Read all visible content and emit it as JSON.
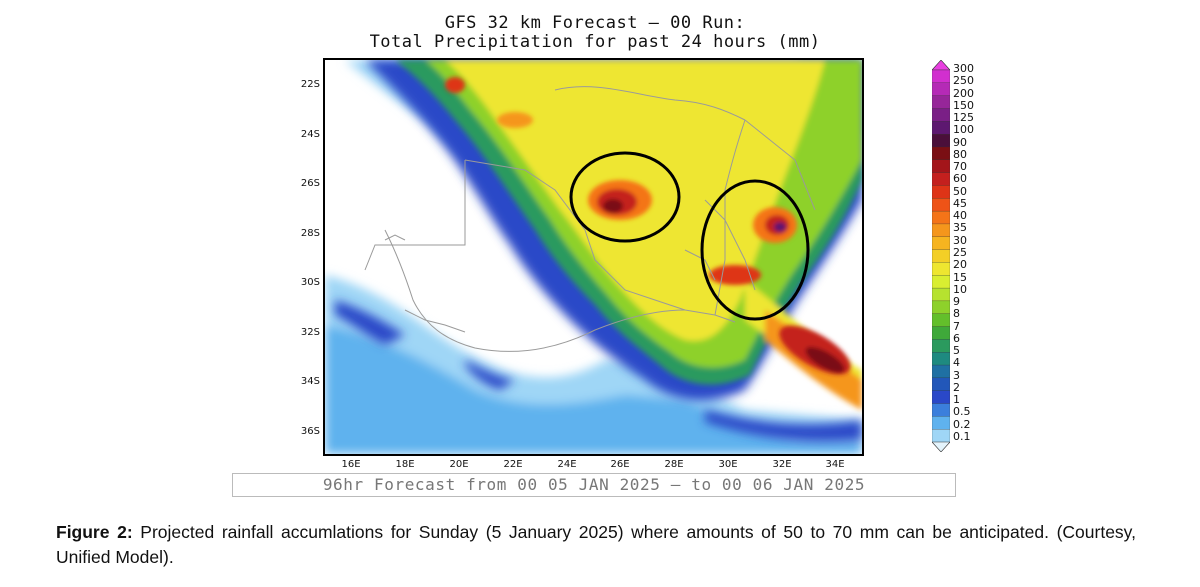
{
  "title": {
    "line1": "GFS 32 km Forecast — 00 Run:",
    "line2": "Total Precipitation for past 24 hours (mm)"
  },
  "map": {
    "latitude_labels": [
      "22S",
      "24S",
      "26S",
      "28S",
      "30S",
      "32S",
      "34S",
      "36S"
    ],
    "longitude_labels": [
      "16E",
      "18E",
      "20E",
      "22E",
      "24E",
      "26E",
      "28E",
      "30E",
      "32E",
      "34E"
    ],
    "highlight_circles": 2
  },
  "legend": {
    "unit": "mm",
    "levels": [
      "300",
      "250",
      "200",
      "150",
      "125",
      "100",
      "90",
      "80",
      "70",
      "60",
      "50",
      "45",
      "40",
      "35",
      "30",
      "25",
      "20",
      "15",
      "10",
      "9",
      "8",
      "7",
      "6",
      "5",
      "4",
      "3",
      "2",
      "1",
      "0.5",
      "0.2",
      "0.1"
    ],
    "colors": [
      "#e83fe0",
      "#d12fcf",
      "#b52ab6",
      "#962699",
      "#7a1f86",
      "#5d1870",
      "#4a0f3a",
      "#7a0f14",
      "#a3151a",
      "#c4201e",
      "#de3417",
      "#ee5317",
      "#f47418",
      "#f5961c",
      "#f6b420",
      "#f3cf26",
      "#eee630",
      "#d9ee31",
      "#b6e22f",
      "#8ed12b",
      "#63bf2b",
      "#3fa93a",
      "#2b9a5e",
      "#1e8a80",
      "#1f70a3",
      "#2257b9",
      "#2a48c8",
      "#3b7fdc",
      "#5fb2ee",
      "#9fd6f6",
      "#e4f4fc"
    ]
  },
  "footer": {
    "forecast_text": "96hr Forecast from 00 05 JAN 2025 — to 00 06 JAN 2025"
  },
  "caption": {
    "label": "Figure 2:",
    "text": " Projected rainfall accumlations for Sunday (5 January 2025) where amounts of 50 to 70 mm can be anticipated. (Courtesy, Unified Model)."
  }
}
